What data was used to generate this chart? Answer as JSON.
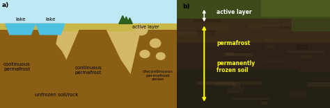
{
  "fig_width": 4.74,
  "fig_height": 1.56,
  "dpi": 100,
  "panel_a_label": "a)",
  "panel_b_label": "b)",
  "sky_color": "#bfe8f5",
  "active_layer_color": "#c8b84a",
  "permafrost_color": "#8b5e15",
  "unfrozen_color": "#d4b86a",
  "lake_color": "#4ec0e0",
  "tree_color": "#2d5e1e",
  "labels": {
    "lake1": "lake",
    "lake2": "lake",
    "active_layer": "active layer",
    "continuous_left": "continuous\npermafrost",
    "continuous_right": "continuous\npermafrost",
    "discontinuous": "discontinuous\npermafrost\nzones",
    "unfrozen": "unfrozen soil/rock"
  },
  "photo_labels": {
    "active_layer": "active layer",
    "permafrost": "permafrost",
    "frozen_soil": "permanently\nfrozen soil"
  },
  "arrow_color_white": "#ffffff",
  "arrow_color_yellow": "#ffff00"
}
